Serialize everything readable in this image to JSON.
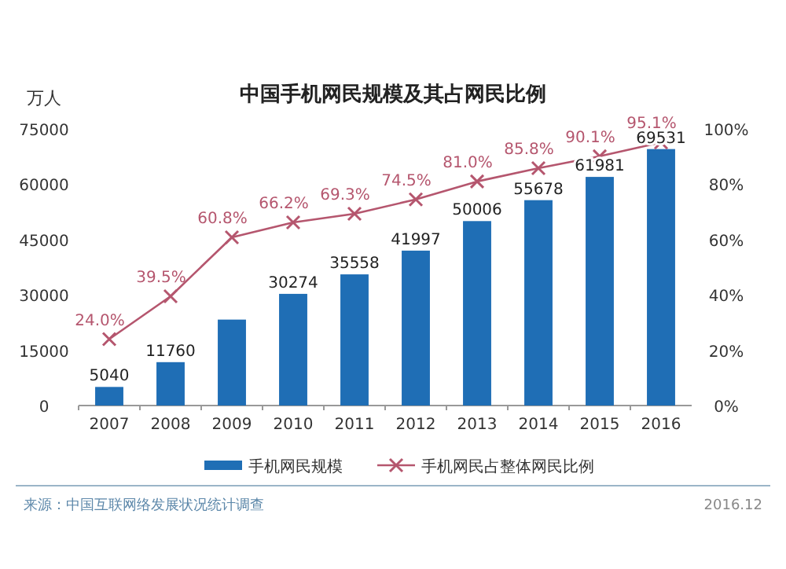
{
  "chart_data": {
    "type": "bar",
    "title": "中国手机网民规模及其占网民比例",
    "ylabel": "万人",
    "categories": [
      "2007",
      "2008",
      "2009",
      "2010",
      "2011",
      "2012",
      "2013",
      "2014",
      "2015",
      "2016"
    ],
    "series": [
      {
        "name": "手机网民规模",
        "color": "#1f6eb5",
        "values": [
          5040,
          11760,
          23300,
          30274,
          35558,
          41997,
          50006,
          55678,
          61981,
          69531
        ],
        "value_labels": [
          "5040",
          "11760",
          null,
          "30274",
          "35558",
          "41997",
          "50006",
          "55678",
          "61981",
          "69531"
        ]
      },
      {
        "name": "手机网民占整体网民比例",
        "type": "line",
        "axis": "y2",
        "color": "#b5566e",
        "marker": "cross",
        "values": [
          24.0,
          39.5,
          60.8,
          66.2,
          69.3,
          74.5,
          81.0,
          85.8,
          90.1,
          95.1
        ],
        "value_labels": [
          "24.0%",
          "39.5%",
          "60.8%",
          "66.2%",
          "69.3%",
          "74.5%",
          "81.0%",
          "85.8%",
          "90.1%",
          "95.1%"
        ]
      }
    ],
    "ylim": [
      0,
      75000
    ],
    "yticks": [
      0,
      15000,
      30000,
      45000,
      60000,
      75000
    ],
    "y2lim": [
      0,
      100
    ],
    "y2ticks": [
      {
        "value": 0,
        "label": "0%"
      },
      {
        "value": 20,
        "label": "20%"
      },
      {
        "value": 40,
        "label": "40%"
      },
      {
        "value": 60,
        "label": "60%"
      },
      {
        "value": 80,
        "label": "80%"
      },
      {
        "value": 100,
        "label": "100%"
      }
    ],
    "legend": "bottom",
    "grid": false,
    "annotations": [
      "来源：中国互联网络发展状况统计调查",
      "2016.12"
    ]
  }
}
